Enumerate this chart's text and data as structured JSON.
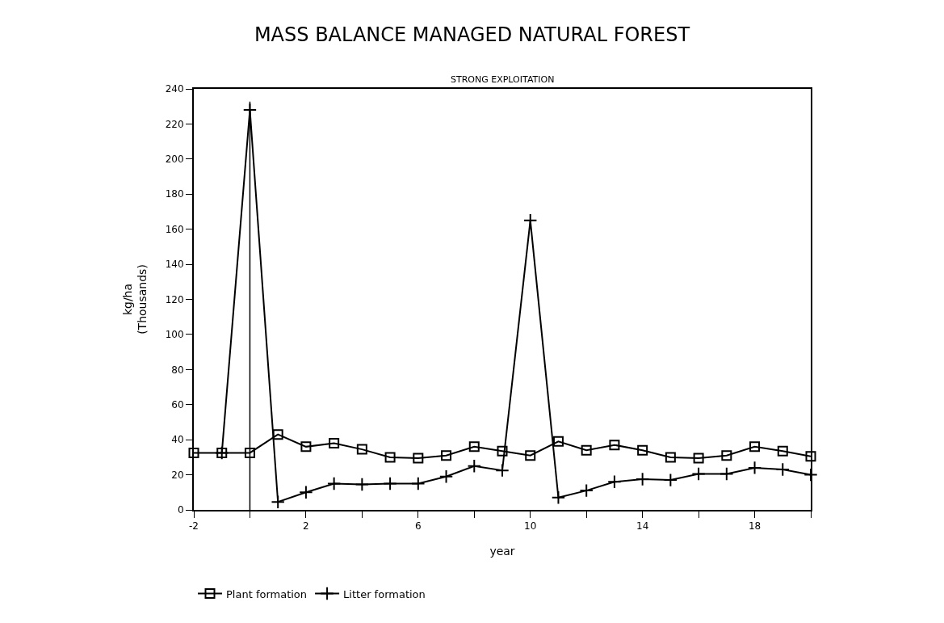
{
  "chart_data": {
    "type": "line",
    "title": "MASS BALANCE MANAGED NATURAL FOREST",
    "subtitle": "STRONG EXPLOITATION",
    "xlabel": "year",
    "ylabel": "kg/ha (Thousands)",
    "x": [
      -2,
      -1,
      0,
      1,
      2,
      3,
      4,
      5,
      6,
      7,
      8,
      9,
      10,
      11,
      12,
      13,
      14,
      15,
      16,
      17,
      18,
      19,
      20
    ],
    "series": [
      {
        "name": "Plant formation",
        "color": "#000000",
        "marker": "square",
        "values": [
          32.5,
          32.5,
          32.5,
          43,
          36,
          38,
          34.5,
          30,
          29.5,
          31,
          36,
          33.5,
          31,
          39,
          34,
          37,
          34,
          30,
          29.5,
          31,
          36,
          33.5,
          30.5
        ]
      },
      {
        "name": "Litter formation",
        "color": "#000000",
        "marker": "cross",
        "values": [
          null,
          32.5,
          228,
          4.5,
          10,
          15,
          14.5,
          15,
          15,
          19,
          25,
          22.5,
          165,
          7,
          11,
          16,
          17.5,
          17,
          20.5,
          20.5,
          24,
          23,
          20
        ]
      }
    ],
    "xlim": [
      -2,
      20
    ],
    "xticks": [
      -2,
      {
        "value": 0,
        "label": null
      },
      2,
      {
        "value": 4,
        "label": null
      },
      6,
      {
        "value": 8,
        "label": null
      },
      10,
      {
        "value": 12,
        "label": null
      },
      14,
      {
        "value": 16,
        "label": null
      },
      18,
      {
        "value": 20,
        "label": null
      }
    ],
    "ylim": [
      0,
      240
    ],
    "yticks": [
      0,
      20,
      40,
      60,
      80,
      100,
      120,
      140,
      160,
      180,
      200,
      220,
      240
    ],
    "ref_lines": [
      {
        "axis": "x",
        "value": 0,
        "color": "#000000"
      }
    ],
    "grid": false,
    "legend": "bottom",
    "line_style": "solid"
  }
}
